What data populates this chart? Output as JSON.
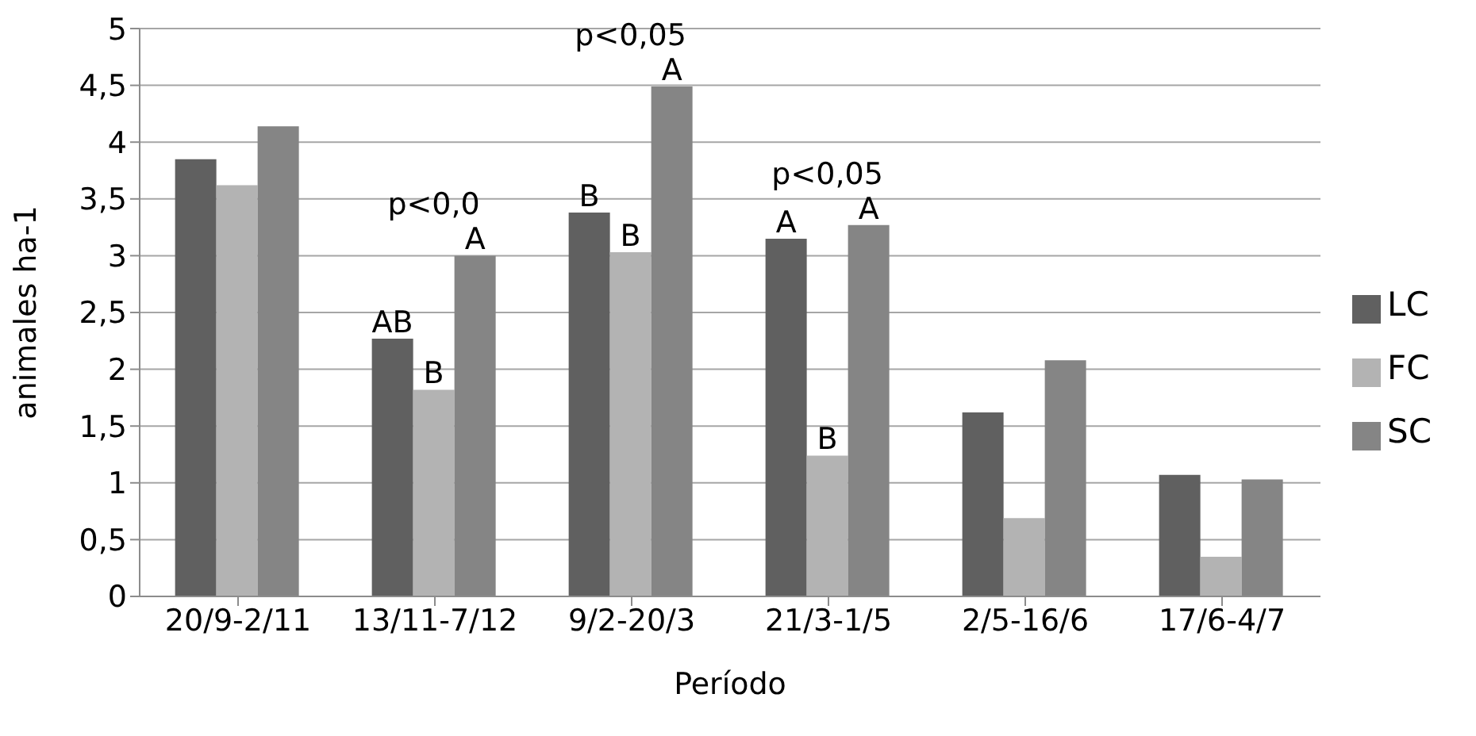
{
  "chart_data": {
    "type": "bar",
    "xlabel": "Período",
    "ylabel": "animales ha-1",
    "categories": [
      "20/9-2/11",
      "13/11-7/12",
      "9/2-20/3",
      "21/3-1/5",
      "2/5-16/6",
      "17/6-4/7"
    ],
    "series": [
      {
        "name": "LC",
        "color": "#606060",
        "values": [
          3.85,
          2.27,
          3.38,
          3.15,
          1.62,
          1.07
        ]
      },
      {
        "name": "FC",
        "color": "#b3b3b3",
        "values": [
          3.62,
          1.82,
          3.03,
          1.24,
          0.69,
          0.35
        ]
      },
      {
        "name": "SC",
        "color": "#858585",
        "values": [
          4.14,
          3.0,
          4.49,
          3.27,
          2.08,
          1.03
        ]
      }
    ],
    "ylim": [
      0,
      5
    ],
    "yticks": [
      0,
      {
        "value": 0.5,
        "label": "0,5"
      },
      1,
      {
        "value": 1.5,
        "label": "1,5"
      },
      2,
      {
        "value": 2.5,
        "label": "2,5"
      },
      3,
      {
        "value": 3.5,
        "label": "3,5"
      },
      4,
      {
        "value": 4.5,
        "label": "4,5"
      },
      5
    ],
    "grid": "y",
    "legend": "right",
    "annotations": [
      "p<0,0",
      "AB",
      "B",
      "A",
      "p<0,05",
      "B",
      "B",
      "A",
      "p<0,05",
      "A",
      "B",
      "A"
    ]
  }
}
